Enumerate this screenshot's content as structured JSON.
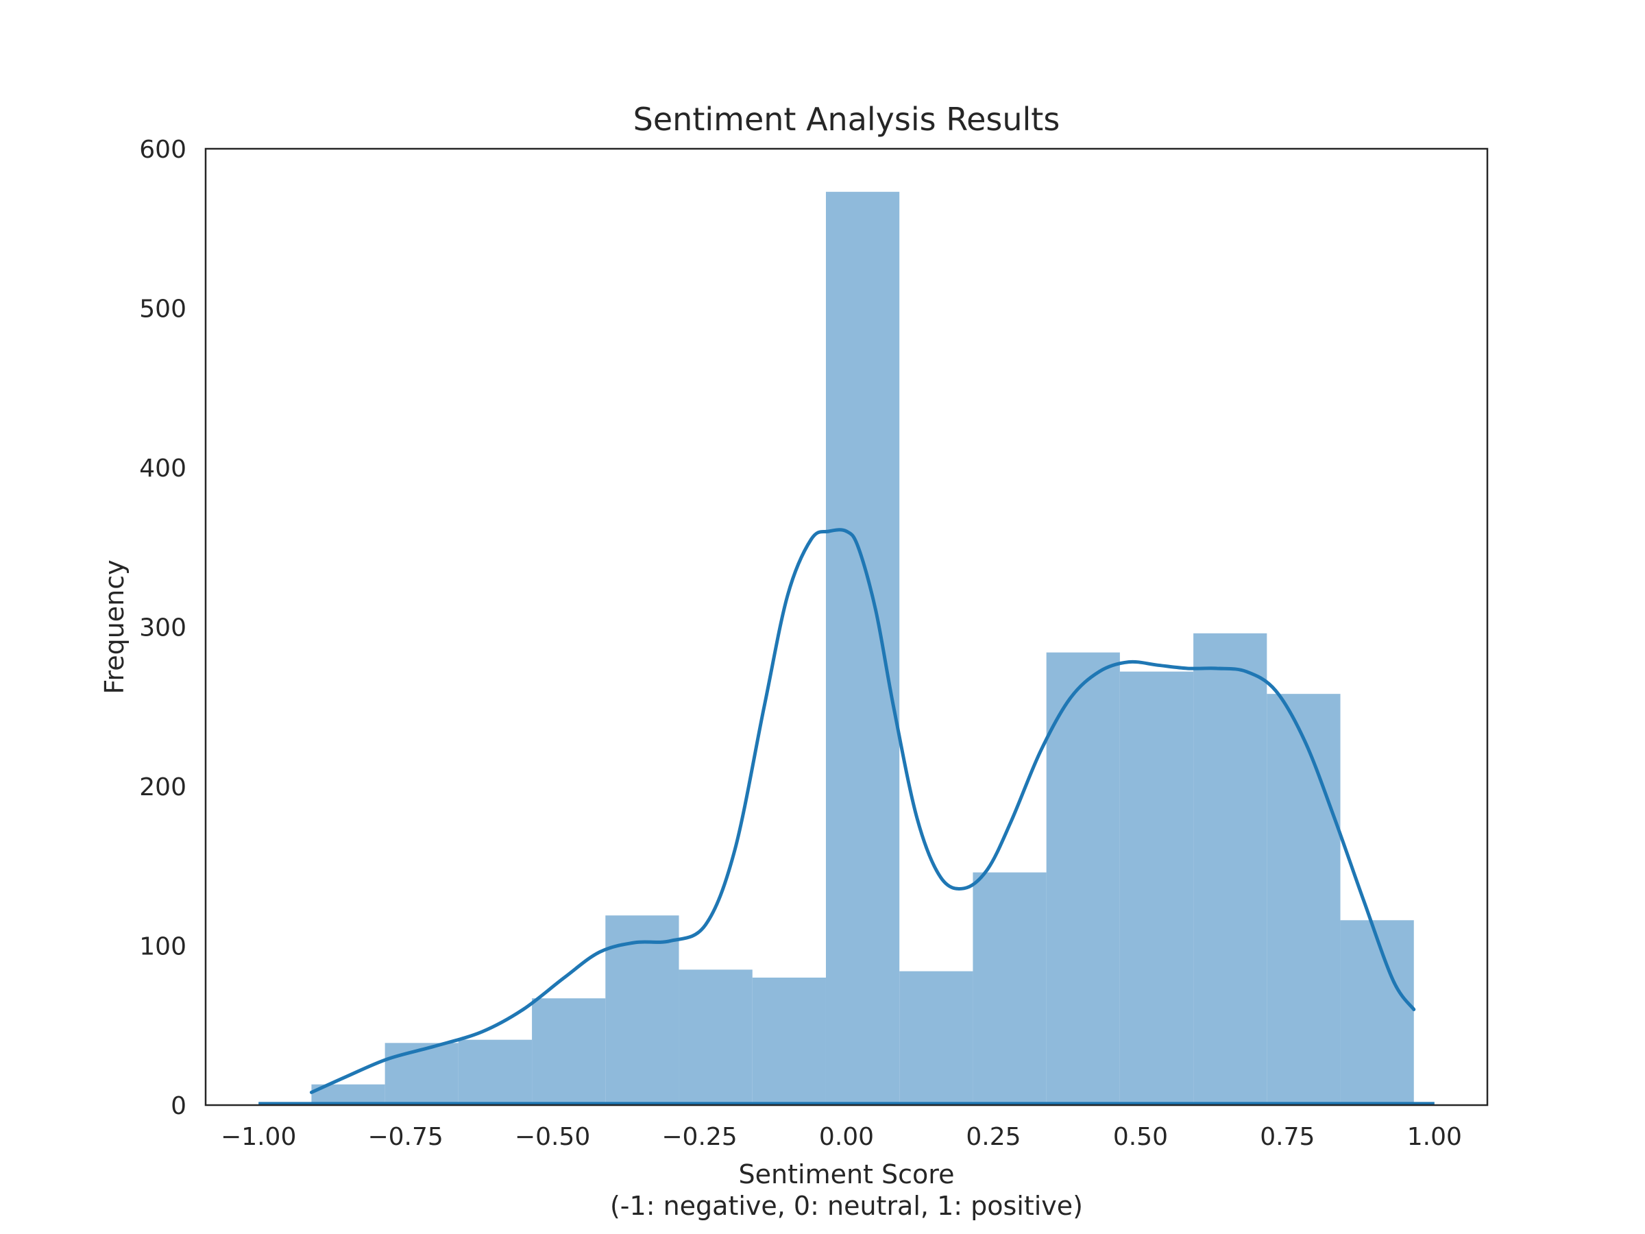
{
  "chart_data": {
    "type": "bar",
    "title": "Sentiment Analysis Results",
    "xlabel": "Sentiment Score",
    "xlabel_sub": "(-1: negative, 0: neutral, 1: positive)",
    "ylabel": "Frequency",
    "xlim": [
      -1.09,
      1.09
    ],
    "ylim": [
      0,
      600
    ],
    "x_ticks": [
      -1.0,
      -0.75,
      -0.5,
      -0.25,
      0.0,
      0.25,
      0.5,
      0.75,
      1.0
    ],
    "x_tick_labels": [
      "−1.00",
      "−0.75",
      "−0.50",
      "−0.25",
      "0.00",
      "0.25",
      "0.50",
      "0.75",
      "1.00"
    ],
    "y_ticks": [
      0,
      100,
      200,
      300,
      400,
      500,
      600
    ],
    "y_tick_labels": [
      "0",
      "100",
      "200",
      "300",
      "400",
      "500",
      "600"
    ],
    "bin_edges": [
      -0.91,
      -0.785,
      -0.66,
      -0.535,
      -0.41,
      -0.285,
      -0.16,
      -0.035,
      0.09,
      0.215,
      0.34,
      0.465,
      0.59,
      0.715,
      0.84,
      0.965
    ],
    "counts": [
      13,
      39,
      41,
      67,
      119,
      85,
      80,
      573,
      84,
      146,
      284,
      272,
      296,
      258,
      116
    ],
    "kde_curve": {
      "x": [
        -0.91,
        -0.85,
        -0.78,
        -0.7,
        -0.62,
        -0.55,
        -0.48,
        -0.42,
        -0.36,
        -0.3,
        -0.24,
        -0.19,
        -0.14,
        -0.1,
        -0.06,
        -0.03,
        0.0,
        0.02,
        0.05,
        0.08,
        0.12,
        0.16,
        0.2,
        0.24,
        0.28,
        0.33,
        0.38,
        0.43,
        0.48,
        0.53,
        0.58,
        0.63,
        0.68,
        0.73,
        0.78,
        0.83,
        0.88,
        0.93,
        0.965
      ],
      "y": [
        8,
        18,
        29,
        37,
        46,
        60,
        80,
        96,
        102,
        103,
        113,
        160,
        250,
        320,
        355,
        360,
        360,
        350,
        310,
        250,
        180,
        143,
        136,
        148,
        178,
        222,
        255,
        272,
        278,
        276,
        274,
        274,
        272,
        260,
        228,
        180,
        128,
        78,
        60
      ]
    },
    "rug_line": {
      "x": [
        -1.0,
        1.0
      ],
      "y": [
        0.5,
        0.5
      ]
    },
    "colors": {
      "bar": "#8fbadb",
      "line": "#1f77b4",
      "text": "#262626",
      "frame": "#262626"
    },
    "grid": false,
    "legend": "none"
  }
}
